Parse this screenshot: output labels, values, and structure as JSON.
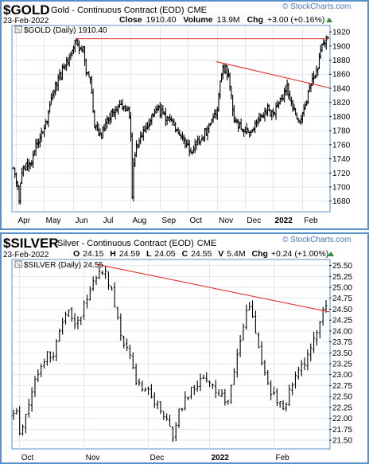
{
  "colors": {
    "frame": "#5a8fc9",
    "title_bg": "#ffffff",
    "plot_bg": "#ffffff",
    "grid": "#d8dde6",
    "bar": "#000000",
    "trendline": "#e0302b",
    "axis_text": "#000000",
    "up_triangle": "#2e8b2e",
    "watermark": "#4a76b0"
  },
  "watermark": "© StockCharts.com",
  "chart_data": [
    {
      "type": "ohlc",
      "symbol": "$GOLD",
      "name": "Gold - Continuous Contract (EOD)",
      "exchange": "CME",
      "date": "23-Feb-2022",
      "close_label": "Close",
      "close": "1910.40",
      "volume_label": "Volume",
      "volume": "13.9M",
      "chg_label": "Chg",
      "chg": "+3.00 (+0.16%)",
      "legend": "$GOLD (Daily) 1910.40",
      "ylim": [
        1665,
        1928
      ],
      "y_ticks": [
        1680,
        1700,
        1720,
        1740,
        1760,
        1780,
        1800,
        1820,
        1840,
        1860,
        1880,
        1900,
        1920
      ],
      "x_ticks": [
        {
          "label": "Apr",
          "i": 2
        },
        {
          "label": "May",
          "i": 22
        },
        {
          "label": "Jun",
          "i": 43
        },
        {
          "label": "Jul",
          "i": 63
        },
        {
          "label": "Aug",
          "i": 84
        },
        {
          "label": "Sep",
          "i": 105
        },
        {
          "label": "Oct",
          "i": 125
        },
        {
          "label": "Nov",
          "i": 146
        },
        {
          "label": "Dec",
          "i": 166
        },
        {
          "label": "2022",
          "i": 186
        },
        {
          "label": "Feb",
          "i": 207
        }
      ],
      "n_bars": 226,
      "keypoints": [
        [
          0,
          1728
        ],
        [
          3,
          1700
        ],
        [
          4,
          1682
        ],
        [
          6,
          1725
        ],
        [
          10,
          1730
        ],
        [
          13,
          1738
        ],
        [
          16,
          1760
        ],
        [
          20,
          1776
        ],
        [
          24,
          1795
        ],
        [
          28,
          1830
        ],
        [
          32,
          1852
        ],
        [
          36,
          1868
        ],
        [
          40,
          1880
        ],
        [
          42,
          1896
        ],
        [
          45,
          1908
        ],
        [
          47,
          1898
        ],
        [
          50,
          1896
        ],
        [
          52,
          1868
        ],
        [
          55,
          1850
        ],
        [
          58,
          1790
        ],
        [
          60,
          1776
        ],
        [
          63,
          1773
        ],
        [
          66,
          1790
        ],
        [
          70,
          1805
        ],
        [
          74,
          1810
        ],
        [
          78,
          1815
        ],
        [
          81,
          1812
        ],
        [
          83,
          1800
        ],
        [
          84,
          1772
        ],
        [
          85,
          1682
        ],
        [
          86,
          1730
        ],
        [
          88,
          1755
        ],
        [
          92,
          1770
        ],
        [
          96,
          1790
        ],
        [
          100,
          1800
        ],
        [
          104,
          1810
        ],
        [
          108,
          1800
        ],
        [
          112,
          1795
        ],
        [
          116,
          1786
        ],
        [
          120,
          1775
        ],
        [
          124,
          1760
        ],
        [
          127,
          1745
        ],
        [
          130,
          1760
        ],
        [
          134,
          1765
        ],
        [
          138,
          1780
        ],
        [
          142,
          1790
        ],
        [
          146,
          1810
        ],
        [
          148,
          1855
        ],
        [
          150,
          1865
        ],
        [
          152,
          1870
        ],
        [
          154,
          1855
        ],
        [
          156,
          1830
        ],
        [
          158,
          1790
        ],
        [
          162,
          1785
        ],
        [
          166,
          1780
        ],
        [
          170,
          1778
        ],
        [
          174,
          1790
        ],
        [
          178,
          1800
        ],
        [
          182,
          1810
        ],
        [
          186,
          1800
        ],
        [
          190,
          1820
        ],
        [
          194,
          1832
        ],
        [
          196,
          1842
        ],
        [
          198,
          1828
        ],
        [
          200,
          1814
        ],
        [
          202,
          1800
        ],
        [
          204,
          1792
        ],
        [
          206,
          1800
        ],
        [
          208,
          1814
        ],
        [
          210,
          1825
        ],
        [
          212,
          1835
        ],
        [
          214,
          1850
        ],
        [
          216,
          1860
        ],
        [
          218,
          1872
        ],
        [
          220,
          1890
        ],
        [
          222,
          1905
        ],
        [
          224,
          1905
        ],
        [
          225,
          1910.4
        ]
      ],
      "trendline": [
        [
          145,
          1878
        ],
        [
          225,
          1842
        ]
      ],
      "close_line": 1910.4
    },
    {
      "type": "ohlc",
      "symbol": "$SILVER",
      "name": "Silver - Continuous Contract (EOD)",
      "exchange": "CME",
      "date": "23-Feb-2022",
      "open_label": "O",
      "open": "24.15",
      "high_label": "H",
      "high": "24.59",
      "low_label": "L",
      "low": "24.05",
      "close_label": "C",
      "close": "24.55",
      "volume_label": "V",
      "volume": "5.4M",
      "chg_label": "Chg",
      "chg": "+0.24 (+1.00%)",
      "legend": "$SILVER (Daily) 24.55",
      "ylim": [
        21.3,
        25.62
      ],
      "y_ticks": [
        21.5,
        21.75,
        22.0,
        22.25,
        22.5,
        22.75,
        23.0,
        23.25,
        23.5,
        23.75,
        24.0,
        24.25,
        24.5,
        24.75,
        25.0,
        25.25,
        25.5
      ],
      "x_ticks": [
        {
          "label": "Oct",
          "i": 2
        },
        {
          "label": "Nov",
          "i": 23
        },
        {
          "label": "Dec",
          "i": 44
        },
        {
          "label": "2022",
          "i": 64
        },
        {
          "label": "Feb",
          "i": 85
        }
      ],
      "n_bars": 103,
      "keypoints": [
        [
          0,
          22.1
        ],
        [
          1,
          22.15
        ],
        [
          2,
          21.6
        ],
        [
          3,
          21.75
        ],
        [
          5,
          22.3
        ],
        [
          7,
          22.9
        ],
        [
          9,
          23.2
        ],
        [
          11,
          23.5
        ],
        [
          13,
          23.4
        ],
        [
          14,
          23.8
        ],
        [
          16,
          24.2
        ],
        [
          18,
          24.4
        ],
        [
          20,
          24.2
        ],
        [
          22,
          24.4
        ],
        [
          24,
          24.8
        ],
        [
          26,
          25.2
        ],
        [
          28,
          25.4
        ],
        [
          30,
          25.3
        ],
        [
          32,
          24.9
        ],
        [
          34,
          24.3
        ],
        [
          36,
          23.6
        ],
        [
          38,
          23.5
        ],
        [
          40,
          22.9
        ],
        [
          42,
          22.7
        ],
        [
          44,
          22.6
        ],
        [
          46,
          22.4
        ],
        [
          48,
          22.2
        ],
        [
          50,
          21.9
        ],
        [
          52,
          21.6
        ],
        [
          54,
          22.2
        ],
        [
          56,
          22.4
        ],
        [
          58,
          22.7
        ],
        [
          60,
          22.8
        ],
        [
          62,
          23.0
        ],
        [
          64,
          22.8
        ],
        [
          66,
          22.6
        ],
        [
          68,
          22.5
        ],
        [
          70,
          22.4
        ],
        [
          72,
          23.0
        ],
        [
          74,
          23.8
        ],
        [
          76,
          24.4
        ],
        [
          77,
          24.6
        ],
        [
          78,
          24.3
        ],
        [
          80,
          23.7
        ],
        [
          82,
          23.0
        ],
        [
          84,
          22.6
        ],
        [
          86,
          22.4
        ],
        [
          88,
          22.2
        ],
        [
          90,
          22.6
        ],
        [
          92,
          23.0
        ],
        [
          94,
          23.2
        ],
        [
          96,
          23.4
        ],
        [
          98,
          23.8
        ],
        [
          100,
          24.2
        ],
        [
          101,
          24.4
        ],
        [
          102,
          24.55
        ]
      ],
      "trendline": [
        [
          27,
          25.53
        ],
        [
          102,
          24.48
        ]
      ],
      "close_line": null
    }
  ]
}
